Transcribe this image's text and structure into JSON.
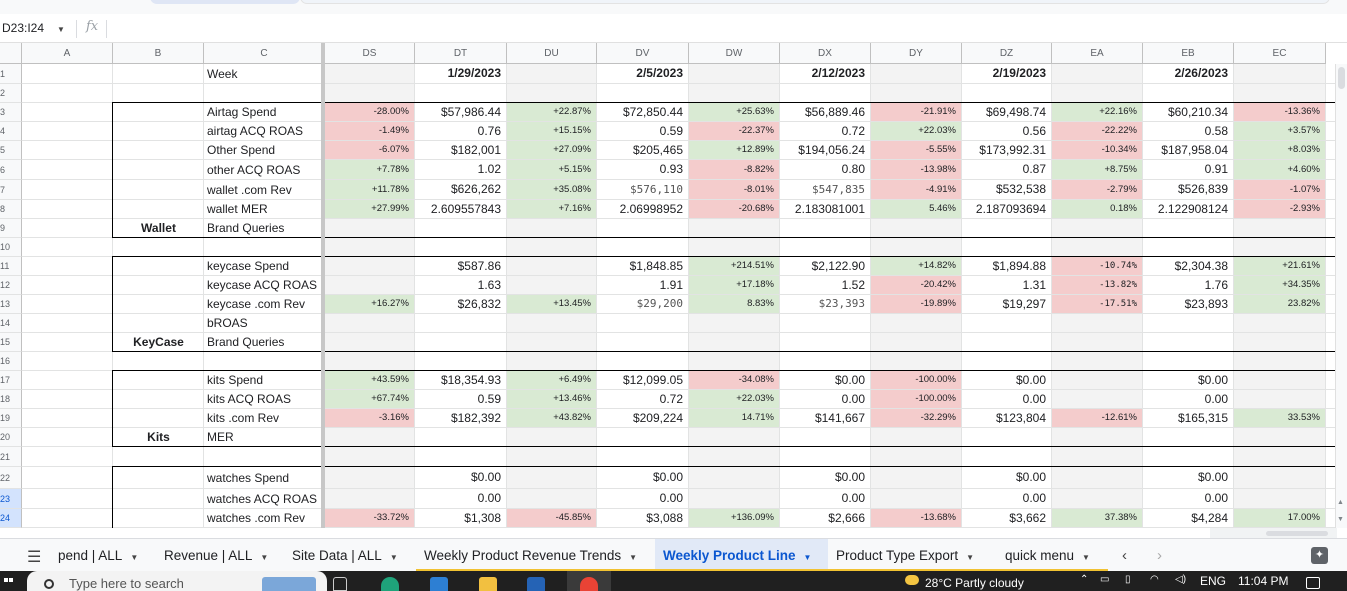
{
  "namebox": {
    "value": "D23:I24"
  },
  "formula_bar": {
    "fx_label": "fx",
    "content": ""
  },
  "column_headers": [
    "A",
    "B",
    "C",
    "DS",
    "DT",
    "DU",
    "DV",
    "DW",
    "DX",
    "DY",
    "DZ",
    "EA",
    "EB",
    "EC"
  ],
  "row_headers": [
    "1",
    "2",
    "3",
    "4",
    "5",
    "6",
    "7",
    "8",
    "9",
    "10",
    "11",
    "12",
    "13",
    "14",
    "15",
    "16",
    "17",
    "18",
    "19",
    "20",
    "21",
    "22",
    "23",
    "24"
  ],
  "selected_rows": [
    "23",
    "24"
  ],
  "rows": [
    {
      "label": "Week",
      "cells": [
        "",
        "1/29/2023",
        "",
        "2/5/2023",
        "",
        "2/12/2023",
        "",
        "2/19/2023",
        "",
        "2/26/2023",
        ""
      ]
    },
    {
      "label": "",
      "cells": [
        "",
        "",
        "",
        "",
        "",
        "",
        "",
        "",
        "",
        "",
        ""
      ]
    },
    {
      "label": "Airtag Spend",
      "cells": [
        "-28.00%",
        "$57,986.44",
        "+22.87%",
        "$72,850.44",
        "+25.63%",
        "$56,889.46",
        "-21.91%",
        "$69,498.74",
        "+22.16%",
        "$60,210.34",
        "-13.36%"
      ]
    },
    {
      "label": "airtag ACQ ROAS",
      "cells": [
        "-1.49%",
        "0.76",
        "+15.15%",
        "0.59",
        "-22.37%",
        "0.72",
        "+22.03%",
        "0.56",
        "-22.22%",
        "0.58",
        "+3.57%"
      ]
    },
    {
      "label": "Other Spend",
      "cells": [
        "-6.07%",
        "$182,001",
        "+27.09%",
        "$205,465",
        "+12.89%",
        "$194,056.24",
        "-5.55%",
        "$173,992.31",
        "-10.34%",
        "$187,958.04",
        "+8.03%"
      ]
    },
    {
      "label": "other ACQ ROAS",
      "cells": [
        "+7.78%",
        "1.02",
        "+5.15%",
        "0.93",
        "-8.82%",
        "0.80",
        "-13.98%",
        "0.87",
        "+8.75%",
        "0.91",
        "+4.60%"
      ]
    },
    {
      "label": "wallet .com Rev",
      "cells": [
        "+11.78%",
        "$626,262",
        "+35.08%",
        "$576,110",
        "-8.01%",
        "$547,835",
        "-4.91%",
        "$532,538",
        "-2.79%",
        "$526,839",
        "-1.07%"
      ]
    },
    {
      "label": "wallet MER",
      "cells": [
        "+27.99%",
        "2.609557843",
        "+7.16%",
        "2.06998952",
        "-20.68%",
        "2.183081001",
        "5.46%",
        "2.187093694",
        "0.18%",
        "2.122908124",
        "-2.93%"
      ]
    },
    {
      "label": "Brand Queries",
      "group": "Wallet",
      "cells": [
        "",
        "",
        "",
        "",
        "",
        "",
        "",
        "",
        "",
        "",
        ""
      ]
    },
    {
      "label": "",
      "cells": [
        "",
        "",
        "",
        "",
        "",
        "",
        "",
        "",
        "",
        "",
        ""
      ]
    },
    {
      "label": "keycase Spend",
      "cells": [
        "",
        "$587.86",
        "",
        "$1,848.85",
        "+214.51%",
        "$2,122.90",
        "+14.82%",
        "$1,894.88",
        "-10.74%",
        "$2,304.38",
        "+21.61%"
      ]
    },
    {
      "label": "keycase ACQ ROAS",
      "cells": [
        "",
        "1.63",
        "",
        "1.91",
        "+17.18%",
        "1.52",
        "-20.42%",
        "1.31",
        "-13.82%",
        "1.76",
        "+34.35%"
      ]
    },
    {
      "label": "keycase .com Rev",
      "cells": [
        "+16.27%",
        "$26,832",
        "+13.45%",
        "$29,200",
        "8.83%",
        "$23,393",
        "-19.89%",
        "$19,297",
        "-17.51%",
        "$23,893",
        "23.82%"
      ]
    },
    {
      "label": "bROAS",
      "cells": [
        "",
        "",
        "",
        "",
        "",
        "",
        "",
        "",
        "",
        "",
        ""
      ]
    },
    {
      "label": "Brand Queries",
      "group": "KeyCase",
      "cells": [
        "",
        "",
        "",
        "",
        "",
        "",
        "",
        "",
        "",
        "",
        ""
      ]
    },
    {
      "label": "",
      "cells": [
        "",
        "",
        "",
        "",
        "",
        "",
        "",
        "",
        "",
        "",
        ""
      ]
    },
    {
      "label": "kits Spend",
      "cells": [
        "+43.59%",
        "$18,354.93",
        "+6.49%",
        "$12,099.05",
        "-34.08%",
        "$0.00",
        "-100.00%",
        "$0.00",
        "",
        "$0.00",
        ""
      ]
    },
    {
      "label": "kits ACQ ROAS",
      "cells": [
        "+67.74%",
        "0.59",
        "+13.46%",
        "0.72",
        "+22.03%",
        "0.00",
        "-100.00%",
        "0.00",
        "",
        "0.00",
        ""
      ]
    },
    {
      "label": "kits .com Rev",
      "cells": [
        "-3.16%",
        "$182,392",
        "+43.82%",
        "$209,224",
        "14.71%",
        "$141,667",
        "-32.29%",
        "$123,804",
        "-12.61%",
        "$165,315",
        "33.53%"
      ]
    },
    {
      "label": "MER",
      "group": "Kits",
      "cells": [
        "",
        "",
        "",
        "",
        "",
        "",
        "",
        "",
        "",
        "",
        ""
      ]
    },
    {
      "label": "",
      "cells": [
        "",
        "",
        "",
        "",
        "",
        "",
        "",
        "",
        "",
        "",
        ""
      ]
    },
    {
      "label": "watches Spend",
      "cells": [
        "",
        "$0.00",
        "",
        "$0.00",
        "",
        "$0.00",
        "",
        "$0.00",
        "",
        "$0.00",
        ""
      ]
    },
    {
      "label": "watches ACQ ROAS",
      "cells": [
        "",
        "0.00",
        "",
        "0.00",
        "",
        "0.00",
        "",
        "0.00",
        "",
        "0.00",
        ""
      ]
    },
    {
      "label": "watches .com Rev",
      "cells": [
        "-33.72%",
        "$1,308",
        "-45.85%",
        "$3,088",
        "+136.09%",
        "$2,666",
        "-13.68%",
        "$3,662",
        "37.38%",
        "$4,284",
        "17.00%"
      ]
    }
  ],
  "sheet_tabs": [
    {
      "label": "pend | ALL",
      "active": false
    },
    {
      "label": "Revenue | ALL",
      "active": false
    },
    {
      "label": "Site Data | ALL",
      "active": false
    },
    {
      "label": "Weekly Product Revenue Trends",
      "active": false
    },
    {
      "label": "Weekly Product Line",
      "active": true
    },
    {
      "label": "Product Type Export",
      "active": false
    },
    {
      "label": "quick menu",
      "active": false
    }
  ],
  "colors": {
    "positive_fill": "#d9ead3",
    "negative_fill": "#f4cccc",
    "active_tab": "#0b57d0",
    "tab_underline": "#f1c232"
  },
  "taskbar": {
    "search_placeholder": "Type here to search",
    "weather": "28°C  Partly cloudy",
    "language": "ENG",
    "time": "11:04 PM"
  }
}
